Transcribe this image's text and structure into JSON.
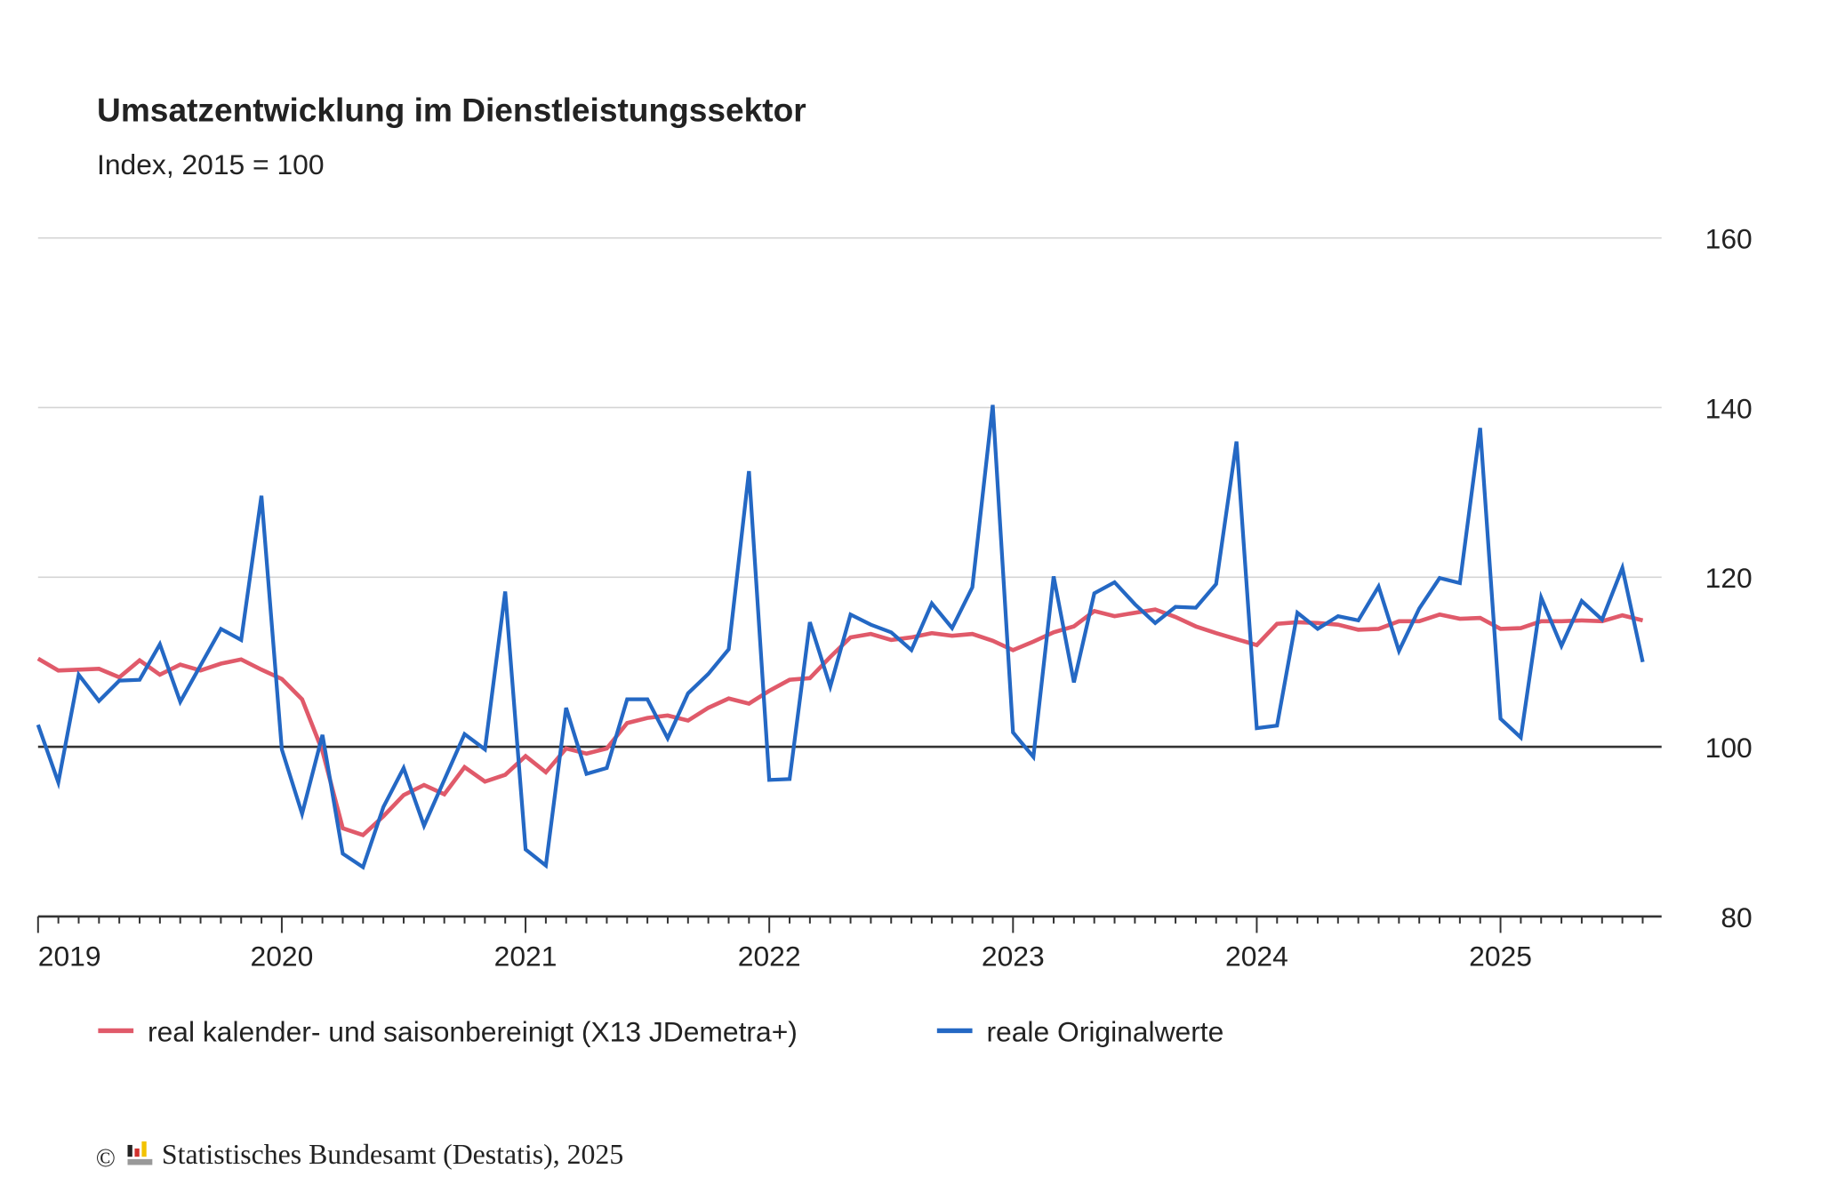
{
  "chart_data": {
    "type": "line",
    "title": "Umsatzentwicklung im Dienstleistungssektor",
    "subtitle": "Index, 2015 = 100",
    "xlabel": "",
    "ylabel": "",
    "x_start": "2019-01",
    "x_frequency": "monthly",
    "x_tick_labels": [
      "2019",
      "2020",
      "2021",
      "2022",
      "2023",
      "2024",
      "2025"
    ],
    "y_tick_labels": [
      "80",
      "100",
      "120",
      "140",
      "160"
    ],
    "y_ticks": [
      80,
      100,
      120,
      140,
      160
    ],
    "ylim": [
      80,
      160
    ],
    "reference_line": 100,
    "grid": true,
    "legend_position": "bottom",
    "series": [
      {
        "name": "real kalender- und saisonbereinigt (X13 JDemetra+)",
        "color": "#e05a6a",
        "values": [
          110.4,
          109.0,
          109.1,
          109.2,
          108.2,
          110.2,
          108.5,
          109.7,
          109.0,
          109.8,
          110.3,
          109.1,
          108.0,
          105.6,
          99.5,
          90.4,
          89.6,
          91.8,
          94.3,
          95.5,
          94.4,
          97.6,
          95.9,
          96.7,
          98.9,
          97.0,
          99.8,
          99.2,
          99.8,
          102.8,
          103.4,
          103.7,
          103.1,
          104.6,
          105.7,
          105.1,
          106.6,
          107.9,
          108.1,
          110.6,
          112.9,
          113.3,
          112.6,
          112.9,
          113.4,
          113.1,
          113.3,
          112.5,
          111.4,
          112.4,
          113.5,
          114.2,
          116.0,
          115.4,
          115.8,
          116.2,
          115.3,
          114.2,
          113.4,
          112.7,
          112.0,
          114.5,
          114.7,
          114.6,
          114.4,
          113.8,
          113.9,
          114.8,
          114.8,
          115.6,
          115.1,
          115.2,
          113.9,
          114.0,
          114.8,
          114.8,
          114.9,
          114.8,
          115.5,
          114.9
        ]
      },
      {
        "name": "reale Originalwerte",
        "color": "#2468c4",
        "values": [
          102.6,
          95.8,
          108.5,
          105.4,
          107.8,
          107.9,
          112.1,
          105.3,
          109.6,
          113.9,
          112.6,
          129.6,
          99.7,
          92.1,
          101.4,
          87.4,
          85.8,
          92.9,
          97.5,
          90.7,
          96.1,
          101.5,
          99.7,
          118.3,
          87.9,
          86.0,
          104.6,
          96.8,
          97.5,
          105.6,
          105.6,
          101.0,
          106.3,
          108.6,
          111.5,
          132.5,
          96.1,
          96.2,
          114.7,
          107.1,
          115.6,
          114.4,
          113.5,
          111.4,
          116.9,
          114.0,
          118.8,
          140.3,
          101.7,
          98.8,
          120.1,
          107.6,
          118.1,
          119.4,
          116.8,
          114.6,
          116.5,
          116.4,
          119.2,
          136.0,
          102.2,
          102.5,
          115.8,
          113.9,
          115.4,
          114.9,
          118.9,
          111.3,
          116.3,
          119.9,
          119.3,
          137.6,
          103.3,
          101.1,
          117.6,
          111.9,
          117.2,
          115.0,
          121.1,
          110.0
        ]
      }
    ]
  },
  "footer": {
    "copyright_symbol": "©",
    "source": "Statistisches Bundesamt (Destatis), 2025"
  }
}
